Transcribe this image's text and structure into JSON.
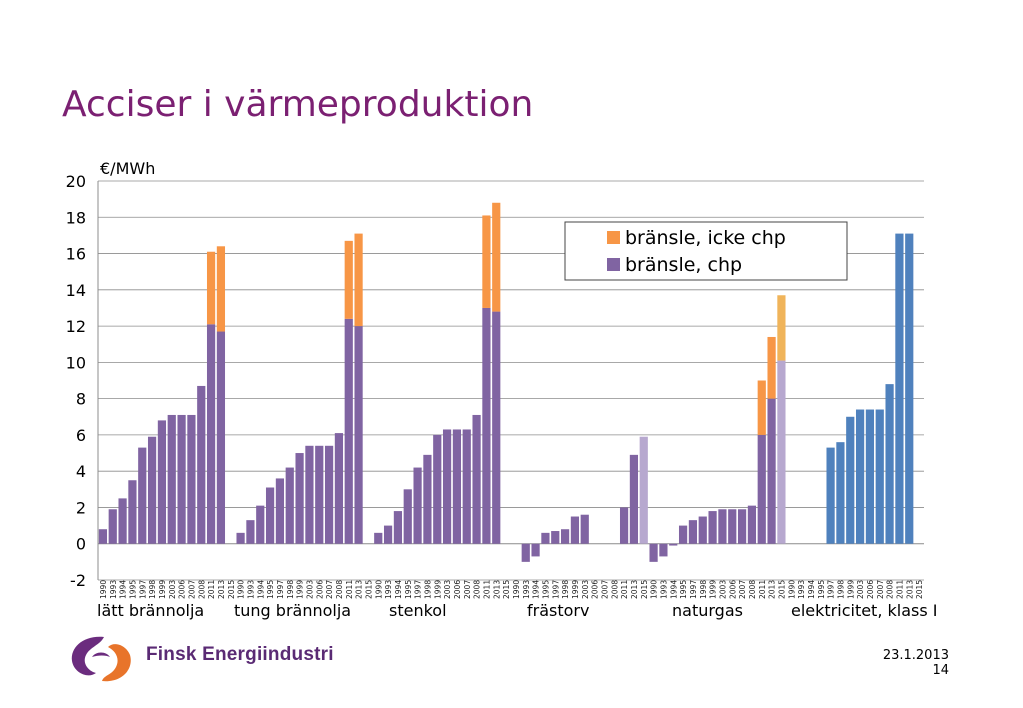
{
  "slide": {
    "title": "Acciser i värmeproduktion",
    "company": "Finsk Energiindustri",
    "date": "23.1.2013",
    "page_number": "14"
  },
  "chart_data": {
    "type": "bar",
    "stacked": true,
    "ylabel": "€/MWh",
    "ylim": [
      -2,
      20
    ],
    "yticks": [
      -2,
      0,
      2,
      4,
      6,
      8,
      10,
      12,
      14,
      16,
      18,
      20
    ],
    "grid": true,
    "legend_position": "top-right",
    "series": [
      {
        "name": "bränsle, chp",
        "color": "#8064a2"
      },
      {
        "name": "bränsle, icke chp",
        "color": "#f79646"
      }
    ],
    "groups": [
      {
        "label": "lätt brännolja",
        "years": [
          "1990",
          "1993",
          "1994",
          "1995",
          "1997",
          "1998",
          "1999",
          "2003",
          "2006",
          "2007",
          "2008",
          "2011",
          "2013",
          "2015"
        ],
        "chp": [
          0.8,
          1.9,
          2.5,
          3.5,
          5.3,
          5.9,
          6.8,
          7.1,
          7.1,
          7.1,
          8.7,
          12.1,
          11.7,
          null
        ],
        "icke_chp": [
          0,
          0,
          0,
          0,
          0,
          0,
          0,
          0,
          0,
          0,
          0,
          4.0,
          4.7,
          null
        ]
      },
      {
        "label": "tung brännolja",
        "years": [
          "1990",
          "1993",
          "1994",
          "1995",
          "1997",
          "1998",
          "1999",
          "2003",
          "2006",
          "2007",
          "2008",
          "2011",
          "2013",
          "2015"
        ],
        "chp": [
          0.6,
          1.3,
          2.1,
          3.1,
          3.6,
          4.2,
          5.0,
          5.4,
          5.4,
          5.4,
          6.1,
          12.4,
          12.0,
          null
        ],
        "icke_chp": [
          0,
          0,
          0,
          0,
          0,
          0,
          0,
          0,
          0,
          0,
          0,
          4.3,
          5.1,
          null
        ]
      },
      {
        "label": "stenkol",
        "years": [
          "1990",
          "1993",
          "1994",
          "1995",
          "1997",
          "1998",
          "1999",
          "2003",
          "2006",
          "2007",
          "2008",
          "2011",
          "2013",
          "2015"
        ],
        "chp": [
          0.6,
          1.0,
          1.8,
          3.0,
          4.2,
          4.9,
          6.0,
          6.3,
          6.3,
          6.3,
          7.1,
          13.0,
          12.8,
          null
        ],
        "icke_chp": [
          0,
          0,
          0,
          0,
          0,
          0,
          0,
          0,
          0,
          0,
          0,
          5.1,
          6.0,
          null
        ]
      },
      {
        "label": "frästorv",
        "years": [
          "1990",
          "1993",
          "1994",
          "1995",
          "1997",
          "1998",
          "1999",
          "2003",
          "2006",
          "2007",
          "2008",
          "2011",
          "2013",
          "2015"
        ],
        "chp": [
          null,
          -1.0,
          -0.7,
          0.6,
          0.7,
          0.8,
          1.5,
          1.6,
          null,
          null,
          null,
          2.0,
          4.9,
          5.9
        ],
        "icke_chp": [
          0,
          0,
          0,
          0,
          0,
          0,
          0,
          0,
          0,
          0,
          0,
          0,
          0,
          0
        ]
      },
      {
        "label": "naturgas",
        "years": [
          "1990",
          "1993",
          "1994",
          "1995",
          "1997",
          "1998",
          "1999",
          "2003",
          "2006",
          "2007",
          "2008",
          "2011",
          "2013",
          "2015"
        ],
        "chp": [
          -1.0,
          -0.7,
          -0.1,
          1.0,
          1.3,
          1.5,
          1.8,
          1.9,
          1.9,
          1.9,
          2.1,
          6.0,
          8.0,
          10.1
        ],
        "icke_chp": [
          0,
          0,
          0,
          0,
          0,
          0,
          0,
          0,
          0,
          0,
          0,
          3.0,
          3.4,
          3.6
        ]
      },
      {
        "label": "elektricitet, klass I",
        "years": [
          "1990",
          "1993",
          "1994",
          "1995",
          "1997",
          "1998",
          "1999",
          "2003",
          "2006",
          "2007",
          "2008",
          "2011",
          "2013",
          "2015"
        ],
        "values": [
          null,
          null,
          null,
          null,
          5.3,
          5.6,
          7.0,
          7.4,
          7.4,
          7.4,
          8.8,
          17.1,
          17.1,
          null
        ],
        "color": "#4f81bd"
      }
    ]
  }
}
